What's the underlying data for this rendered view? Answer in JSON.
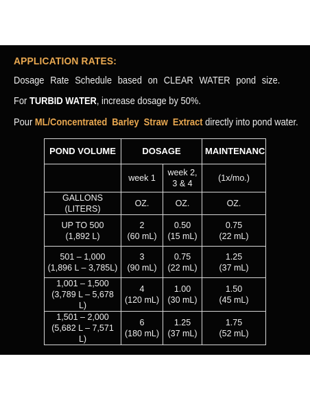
{
  "heading": "APPLICATION RATES:",
  "line1": "Dosage Rate Schedule based on CLEAR WATER pond size.",
  "line2": {
    "prefix": "For ",
    "emphasis": "TURBID WATER",
    "suffix": ", increase dosage by 50%."
  },
  "line3": {
    "prefix": "Pour ",
    "emphasis": "ML/Concentrated Barley Straw Extract",
    "suffix": " directly into pond water."
  },
  "table": {
    "headers": {
      "pond_volume": "POND VOLUME",
      "dosage": "DOSAGE",
      "maintenance": "MAINTENANCE"
    },
    "subheaders": {
      "week1": "week 1",
      "week234": "week 2, 3 & 4",
      "maintenance": "(1x/mo.)"
    },
    "units": {
      "volume": "GALLONS (LITERS)",
      "week1": "OZ.",
      "week234": "OZ.",
      "maintenance": "OZ."
    },
    "rows": [
      {
        "volume_gal": "UP TO 500",
        "volume_l": "(1,892 L)",
        "week1_oz": "2",
        "week1_ml": "(60 mL)",
        "week234_oz": "0.50",
        "week234_ml": "(15 mL)",
        "maint_oz": "0.75",
        "maint_ml": "(22 mL)"
      },
      {
        "volume_gal": "501 – 1,000",
        "volume_l": "(1,896 L – 3,785L)",
        "week1_oz": "3",
        "week1_ml": "(90 mL)",
        "week234_oz": "0.75",
        "week234_ml": "(22 mL)",
        "maint_oz": "1.25",
        "maint_ml": "(37 mL)"
      },
      {
        "volume_gal": "1,001 – 1,500",
        "volume_l": "(3,789 L – 5,678 L)",
        "week1_oz": "4",
        "week1_ml": "(120 mL)",
        "week234_oz": "1.00",
        "week234_ml": "(30 mL)",
        "maint_oz": "1.50",
        "maint_ml": "(45 mL)"
      },
      {
        "volume_gal": "1,501 – 2,000",
        "volume_l": "(5,682 L – 7,571 L)",
        "week1_oz": "6",
        "week1_ml": "(180 mL)",
        "week234_oz": "1.25",
        "week234_ml": "(37 mL)",
        "maint_oz": "1.75",
        "maint_ml": "(52 mL)"
      }
    ]
  },
  "colors": {
    "background": "#050505",
    "accent": "#e9a850",
    "text": "#ececec",
    "border": "#d8d8d8"
  }
}
